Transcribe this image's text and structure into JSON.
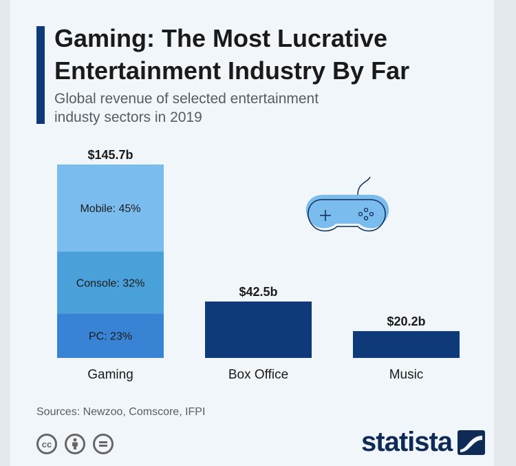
{
  "header": {
    "title": "Gaming: The Most Lucrative\nEntertainment Industry By Far",
    "subtitle": "Global revenue of selected entertainment\nindusty sectors in 2019"
  },
  "footer": {
    "sources": "Sources: Newzoo, Comscore, IFPI",
    "brand": "statista",
    "license_icons": [
      "cc-icon",
      "attribution-icon",
      "no-derivatives-icon"
    ]
  },
  "colors": {
    "dark_bar": "#0f3a7a",
    "mobile": "#7bbcef",
    "console": "#4aa0d8",
    "pc": "#3983d4",
    "icon_fill": "#7bbcef",
    "icon_stroke": "#0f2a55"
  },
  "chart_data": {
    "type": "bar",
    "stacked": true,
    "categories": [
      "Gaming",
      "Box Office",
      "Music"
    ],
    "values": [
      145.7,
      42.5,
      20.2
    ],
    "value_labels": [
      "$145.7b",
      "$42.5b",
      "$20.2b"
    ],
    "unit": "billion USD",
    "gaming_breakdown": [
      {
        "label": "PC: 23%",
        "share": 23,
        "color": "#3983d4"
      },
      {
        "label": "Console: 32%",
        "share": 32,
        "color": "#4aa0d8"
      },
      {
        "label": "Mobile: 45%",
        "share": 45,
        "color": "#7bbcef"
      }
    ],
    "title": "Gaming: The Most Lucrative Entertainment Industry By Far",
    "xlabel": "",
    "ylabel": "",
    "grid": false,
    "legend": "none"
  }
}
